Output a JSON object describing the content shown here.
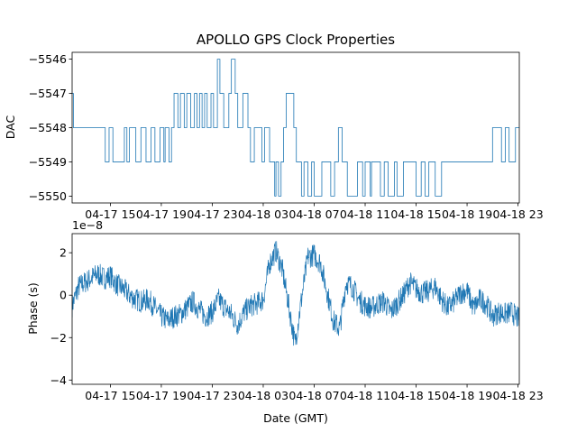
{
  "chart_data": [
    {
      "type": "line",
      "step": true,
      "title": "APOLLO GPS Clock Properties",
      "xlabel": "",
      "ylabel": "DAC",
      "ylim": [
        -5550.2,
        -5545.8
      ],
      "yticks": [
        -5546,
        -5547,
        -5548,
        -5549,
        -5550
      ],
      "ytick_labels": [
        "−5546",
        "−5547",
        "−5548",
        "−5549",
        "−5550"
      ],
      "xlim": [
        12.0,
        47.1
      ],
      "xticks": [
        15,
        19,
        23,
        27,
        31,
        35,
        39,
        43,
        47
      ],
      "xtick_labels": [
        "04-17 15",
        "04-17 19",
        "04-17 23",
        "04-18 03",
        "04-18 07",
        "04-18 11",
        "04-18 15",
        "04-18 19",
        "04-18 23"
      ],
      "x_unit": "hours since 04-17 00 GMT",
      "color": "#1f77b4",
      "series": [
        {
          "x": [
            12.0,
            12.1,
            14.6,
            14.9,
            15.2,
            16.1,
            16.3,
            16.5,
            17.0,
            17.4,
            17.8,
            18.2,
            18.5,
            18.9,
            19.2,
            19.3,
            19.6,
            19.8,
            20.0,
            20.3,
            20.5,
            20.8,
            21.0,
            21.3,
            21.6,
            21.8,
            22.0,
            22.2,
            22.4,
            22.6,
            22.9,
            23.1,
            23.4,
            23.6,
            23.9,
            24.3,
            24.5,
            24.8,
            25.0,
            25.4,
            25.8,
            26.0,
            26.3,
            26.9,
            27.1,
            27.5,
            27.9,
            28.0,
            28.2,
            28.4,
            28.6,
            28.8,
            29.4,
            29.6,
            30.0,
            30.2,
            30.5,
            30.8,
            31.0,
            31.6,
            32.3,
            32.6,
            32.9,
            33.2,
            33.6,
            34.4,
            34.8,
            35.0,
            35.4,
            35.5,
            36.2,
            36.5,
            36.8,
            37.3,
            37.5,
            38.0,
            38.6,
            39.0,
            39.4,
            39.7,
            40.0,
            40.5,
            41.0,
            41.4,
            42.0,
            42.5,
            42.9,
            43.1,
            43.5,
            43.9,
            44.2,
            45.0,
            45.7,
            46.0,
            46.3,
            46.8,
            47.1
          ],
          "y": [
            -5547,
            -5548,
            -5549,
            -5548,
            -5549,
            -5548,
            -5549,
            -5548,
            -5549,
            -5548,
            -5549,
            -5548,
            -5549,
            -5548,
            -5549,
            -5548,
            -5549,
            -5548,
            -5547,
            -5548,
            -5547,
            -5548,
            -5547,
            -5548,
            -5547,
            -5548,
            -5547,
            -5548,
            -5547,
            -5548,
            -5547,
            -5548,
            -5546,
            -5547,
            -5548,
            -5547,
            -5546,
            -5547,
            -5548,
            -5547,
            -5548,
            -5549,
            -5548,
            -5549,
            -5548,
            -5549,
            -5550,
            -5549,
            -5550,
            -5549,
            -5548,
            -5547,
            -5548,
            -5549,
            -5550,
            -5549,
            -5550,
            -5549,
            -5550,
            -5549,
            -5550,
            -5549,
            -5548,
            -5549,
            -5550,
            -5549,
            -5550,
            -5549,
            -5550,
            -5549,
            -5550,
            -5549,
            -5550,
            -5549,
            -5550,
            -5549,
            -5549,
            -5550,
            -5549,
            -5550,
            -5549,
            -5550,
            -5549,
            -5549,
            -5549,
            -5549,
            -5549,
            -5549,
            -5549,
            -5549,
            -5549,
            -5548,
            -5549,
            -5548,
            -5549,
            -5548,
            -5548
          ]
        }
      ]
    },
    {
      "type": "line",
      "title": "",
      "xlabel": "Date (GMT)",
      "ylabel": "Phase (s)",
      "offset_text": "1e−8",
      "ylim": [
        -4.2,
        2.9
      ],
      "yticks": [
        2,
        0,
        -2,
        -4
      ],
      "ytick_labels": [
        "2",
        "0",
        "−2",
        "−4"
      ],
      "xlim": [
        12.0,
        47.1
      ],
      "xticks": [
        15,
        19,
        23,
        27,
        31,
        35,
        39,
        43,
        47
      ],
      "xtick_labels": [
        "04-17 15",
        "04-17 19",
        "04-17 23",
        "04-18 03",
        "04-18 07",
        "04-18 11",
        "04-18 15",
        "04-18 19",
        "04-18 23"
      ],
      "x_unit": "hours since 04-17 00 GMT",
      "color": "#1f77b4",
      "noise_amplitude": 0.55,
      "series": [
        {
          "x": [
            12.0,
            12.5,
            13.0,
            13.5,
            14.0,
            14.5,
            15.0,
            15.5,
            16.0,
            16.5,
            17.0,
            17.5,
            18.0,
            18.5,
            19.0,
            19.5,
            20.0,
            20.5,
            21.0,
            21.5,
            22.0,
            22.5,
            23.0,
            23.5,
            24.0,
            24.5,
            25.0,
            25.5,
            26.0,
            26.5,
            27.0,
            27.5,
            28.0,
            28.5,
            29.0,
            29.5,
            30.0,
            30.5,
            31.0,
            31.5,
            32.0,
            32.5,
            33.0,
            33.5,
            34.0,
            34.5,
            35.0,
            35.5,
            36.0,
            36.5,
            37.0,
            37.5,
            38.0,
            38.5,
            39.0,
            39.5,
            40.0,
            40.5,
            41.0,
            41.5,
            42.0,
            42.5,
            43.0,
            43.5,
            44.0,
            44.5,
            45.0,
            45.5,
            46.0,
            46.5,
            47.0
          ],
          "y": [
            -0.5,
            0.4,
            0.6,
            0.8,
            1.0,
            0.8,
            0.9,
            0.5,
            0.3,
            0.0,
            -0.2,
            -0.3,
            -0.2,
            -0.6,
            -1.0,
            -1.2,
            -1.0,
            -0.9,
            -0.6,
            -0.3,
            -0.7,
            -1.0,
            -0.8,
            -0.2,
            -0.6,
            -0.9,
            -1.4,
            -0.8,
            -0.5,
            -0.4,
            -0.2,
            1.5,
            2.1,
            1.2,
            -0.5,
            -2.3,
            -0.2,
            1.8,
            1.9,
            1.5,
            0.2,
            -1.2,
            -1.6,
            0.6,
            0.4,
            -0.2,
            -0.5,
            -0.6,
            -0.4,
            -0.3,
            -0.8,
            -0.4,
            0.0,
            0.6,
            0.3,
            0.1,
            0.2,
            0.4,
            -0.2,
            -0.6,
            -0.3,
            0.1,
            0.2,
            -0.6,
            -0.2,
            -0.4,
            -1.0,
            -0.8,
            -0.9,
            -0.8,
            -1.1
          ]
        }
      ]
    }
  ]
}
